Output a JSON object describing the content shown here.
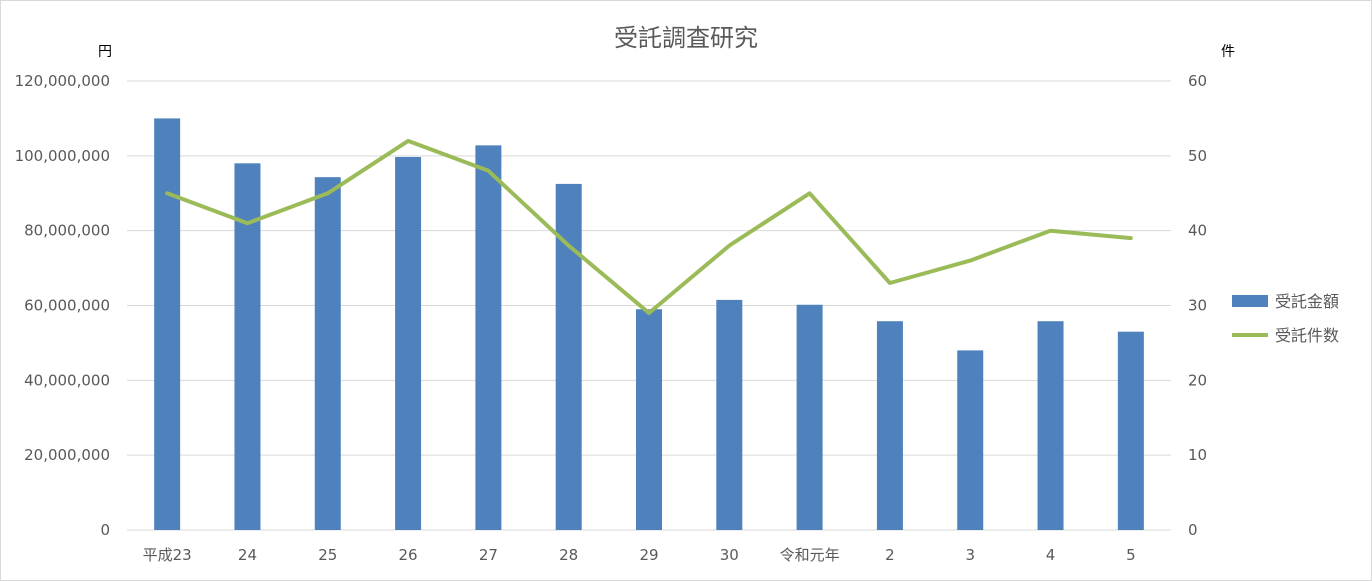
{
  "chart_data": {
    "type": "bar",
    "title": "受託調査研究",
    "categories": [
      "平成23",
      "24",
      "25",
      "26",
      "27",
      "28",
      "29",
      "30",
      "令和元年",
      "2",
      "3",
      "4",
      "5"
    ],
    "series": [
      {
        "name": "受託金額",
        "type": "bar",
        "axis": "left",
        "color": "#4f81bd",
        "values": [
          110000000,
          98000000,
          94300000,
          99700000,
          102800000,
          92500000,
          59000000,
          61500000,
          60200000,
          55800000,
          48000000,
          55800000,
          53000000
        ]
      },
      {
        "name": "受託件数",
        "type": "line",
        "axis": "right",
        "color": "#9bbb59",
        "values": [
          45,
          41,
          45,
          52,
          48,
          38,
          29,
          38,
          45,
          33,
          36,
          40,
          39
        ]
      }
    ],
    "y_left": {
      "unit_label": "円",
      "min": 0,
      "max": 120000000,
      "ticks": [
        "0",
        "20,000,000",
        "40,000,000",
        "60,000,000",
        "80,000,000",
        "100,000,000",
        "120,000,000"
      ]
    },
    "y_right": {
      "unit_label": "件",
      "min": 0,
      "max": 60,
      "ticks": [
        "0",
        "10",
        "20",
        "30",
        "40",
        "50",
        "60"
      ]
    },
    "grid": true,
    "legend_position": "right"
  }
}
